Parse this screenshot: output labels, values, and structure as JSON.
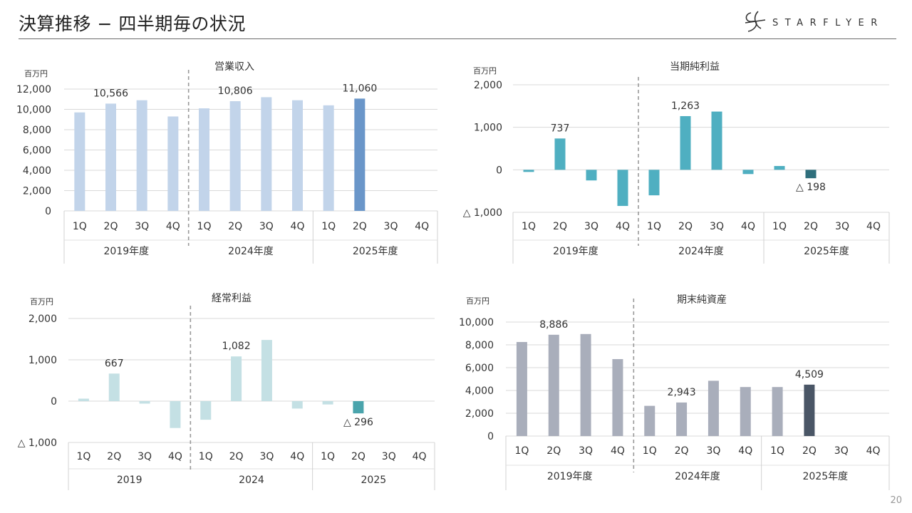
{
  "header": {
    "title": "決算推移 − 四半期毎の状況",
    "logo_text": "STARFLYER",
    "logo_mark": "SF",
    "page_number": "20"
  },
  "colors": {
    "revenue_past": "#c2d4ea",
    "revenue_current": "#6a96c9",
    "netincome_past": "#4fafc1",
    "netincome_current": "#2f6f7c",
    "ordinary_past": "#c4e0e4",
    "ordinary_current": "#4aa4ac",
    "netassets_past": "#a9aebb",
    "netassets_current": "#4a5666"
  },
  "chart_data": [
    {
      "id": "revenue",
      "type": "bar",
      "title": "営業収入",
      "ylabel": "百万円",
      "ylim": [
        0,
        12000
      ],
      "ticks": [
        {
          "v": 0,
          "label": "0"
        },
        {
          "v": 2000,
          "label": "2,000"
        },
        {
          "v": 4000,
          "label": "4,000"
        },
        {
          "v": 6000,
          "label": "6,000"
        },
        {
          "v": 8000,
          "label": "8,000"
        },
        {
          "v": 10000,
          "label": "10,000"
        },
        {
          "v": 12000,
          "label": "12,000"
        }
      ],
      "quarters": [
        "1Q",
        "2Q",
        "3Q",
        "4Q",
        "1Q",
        "2Q",
        "3Q",
        "4Q",
        "1Q",
        "2Q",
        "3Q",
        "4Q"
      ],
      "groups": [
        "2019年度",
        "2024年度",
        "2025年度"
      ],
      "values": [
        9700,
        10566,
        10900,
        9300,
        10100,
        10806,
        11200,
        10900,
        10400,
        11060,
        null,
        null
      ],
      "data_labels": [
        {
          "index": 1,
          "text": "10,566"
        },
        {
          "index": 5,
          "text": "10,806"
        },
        {
          "index": 9,
          "text": "11,060"
        }
      ],
      "current_index": 9
    },
    {
      "id": "net_income",
      "type": "bar",
      "title": "当期純利益",
      "ylabel": "百万円",
      "ylim": [
        -1000,
        2000
      ],
      "ticks": [
        {
          "v": -1000,
          "label": "△ 1,000"
        },
        {
          "v": 0,
          "label": "0"
        },
        {
          "v": 1000,
          "label": "1,000"
        },
        {
          "v": 2000,
          "label": "2,000"
        }
      ],
      "quarters": [
        "1Q",
        "2Q",
        "3Q",
        "4Q",
        "1Q",
        "2Q",
        "3Q",
        "4Q",
        "1Q",
        "2Q",
        "3Q",
        "4Q"
      ],
      "groups": [
        "2019年度",
        "2024年度",
        "2025年度"
      ],
      "values": [
        -50,
        737,
        -250,
        -850,
        -600,
        1263,
        1370,
        -100,
        90,
        -198,
        null,
        null
      ],
      "data_labels": [
        {
          "index": 1,
          "text": "737"
        },
        {
          "index": 5,
          "text": "1,263"
        },
        {
          "index": 9,
          "text": "△ 198"
        }
      ],
      "current_index": 9
    },
    {
      "id": "ordinary_income",
      "type": "bar",
      "title": "経常利益",
      "ylabel": "百万円",
      "ylim": [
        -1000,
        2000
      ],
      "ticks": [
        {
          "v": -1000,
          "label": "△ 1,000"
        },
        {
          "v": 0,
          "label": "0"
        },
        {
          "v": 1000,
          "label": "1,000"
        },
        {
          "v": 2000,
          "label": "2,000"
        }
      ],
      "quarters": [
        "1Q",
        "2Q",
        "3Q",
        "4Q",
        "1Q",
        "2Q",
        "3Q",
        "4Q",
        "1Q",
        "2Q",
        "3Q",
        "4Q"
      ],
      "groups": [
        "2019",
        "2024",
        "2025"
      ],
      "values": [
        60,
        667,
        -60,
        -650,
        -450,
        1082,
        1480,
        -180,
        -80,
        -296,
        null,
        null
      ],
      "data_labels": [
        {
          "index": 1,
          "text": "667"
        },
        {
          "index": 5,
          "text": "1,082"
        },
        {
          "index": 9,
          "text": "△ 296"
        }
      ],
      "current_index": 9
    },
    {
      "id": "net_assets",
      "type": "bar",
      "title": "期末純資産",
      "ylabel": "百万円",
      "ylim": [
        0,
        10000
      ],
      "ticks": [
        {
          "v": 0,
          "label": "0"
        },
        {
          "v": 2000,
          "label": "2,000"
        },
        {
          "v": 4000,
          "label": "4,000"
        },
        {
          "v": 6000,
          "label": "6,000"
        },
        {
          "v": 8000,
          "label": "8,000"
        },
        {
          "v": 10000,
          "label": "10,000"
        }
      ],
      "quarters": [
        "1Q",
        "2Q",
        "3Q",
        "4Q",
        "1Q",
        "2Q",
        "3Q",
        "4Q",
        "1Q",
        "2Q",
        "3Q",
        "4Q"
      ],
      "groups": [
        "2019年度",
        "2024年度",
        "2025年度"
      ],
      "values": [
        8250,
        8886,
        8950,
        6750,
        2650,
        2943,
        4850,
        4300,
        4300,
        4509,
        null,
        null
      ],
      "data_labels": [
        {
          "index": 1,
          "text": "8,886"
        },
        {
          "index": 5,
          "text": "2,943"
        },
        {
          "index": 9,
          "text": "4,509"
        }
      ],
      "current_index": 9
    }
  ]
}
